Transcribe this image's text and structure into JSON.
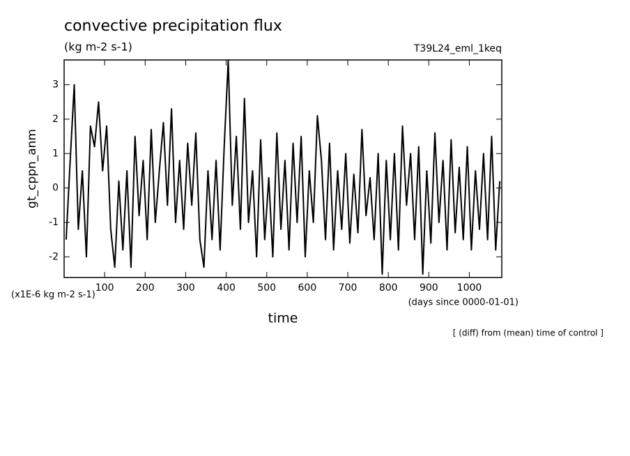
{
  "chart_data": {
    "type": "line",
    "title": "convective precipitation flux",
    "subtitle": "(kg m-2 s-1)",
    "run_name": "T39L24_eml_1keq",
    "y_label": "gt_cppn_anm",
    "y_unit_label": "(x1E-6 kg m-2 s-1)",
    "x_label": "time",
    "x_unit_label": "(days since 0000-01-01)",
    "annotation": "[ (diff) from (mean) time of control ]",
    "xlim": [
      0,
      1080
    ],
    "ylim": [
      -2.6,
      3.72
    ],
    "xticks": [
      100,
      200,
      300,
      400,
      500,
      600,
      700,
      800,
      900,
      1000
    ],
    "yticks": [
      -2,
      -1,
      0,
      1,
      2,
      3
    ],
    "series": [
      {
        "color": "#000000",
        "x": [
          5,
          15,
          25,
          35,
          45,
          55,
          65,
          75,
          85,
          95,
          105,
          115,
          125,
          135,
          145,
          155,
          165,
          175,
          185,
          195,
          205,
          215,
          225,
          235,
          245,
          255,
          265,
          275,
          285,
          295,
          305,
          315,
          325,
          335,
          345,
          355,
          365,
          375,
          385,
          395,
          405,
          415,
          425,
          435,
          445,
          455,
          465,
          475,
          485,
          495,
          505,
          515,
          525,
          535,
          545,
          555,
          565,
          575,
          585,
          595,
          605,
          615,
          625,
          635,
          645,
          655,
          665,
          675,
          685,
          695,
          705,
          715,
          725,
          735,
          745,
          755,
          765,
          775,
          785,
          795,
          805,
          815,
          825,
          835,
          845,
          855,
          865,
          875,
          885,
          895,
          905,
          915,
          925,
          935,
          945,
          955,
          965,
          975,
          985,
          995,
          1005,
          1015,
          1025,
          1035,
          1045,
          1055,
          1065,
          1075
        ],
        "values": [
          -1.5,
          0.8,
          3.0,
          -1.2,
          0.5,
          -2.0,
          1.8,
          1.2,
          2.5,
          0.5,
          1.8,
          -1.2,
          -2.3,
          0.2,
          -1.8,
          0.5,
          -2.3,
          1.5,
          -0.8,
          0.8,
          -1.5,
          1.7,
          -1.0,
          0.5,
          1.9,
          -0.5,
          2.3,
          -1.0,
          0.8,
          -1.2,
          1.3,
          -0.5,
          1.6,
          -1.5,
          -2.3,
          0.5,
          -1.5,
          0.8,
          -1.8,
          1.2,
          3.7,
          -0.5,
          1.5,
          -1.2,
          2.6,
          -1.0,
          0.5,
          -2.0,
          1.4,
          -1.5,
          0.3,
          -2.0,
          1.6,
          -1.2,
          0.8,
          -1.8,
          1.3,
          -1.0,
          1.5,
          -2.0,
          0.5,
          -1.0,
          2.1,
          0.8,
          -1.5,
          1.3,
          -1.8,
          0.5,
          -1.2,
          1.0,
          -1.6,
          0.4,
          -1.3,
          1.7,
          -0.8,
          0.3,
          -1.5,
          1.0,
          -2.5,
          0.8,
          -1.5,
          1.0,
          -1.8,
          1.8,
          -0.5,
          1.0,
          -1.5,
          1.2,
          -2.5,
          0.5,
          -1.6,
          1.6,
          -1.0,
          0.8,
          -1.8,
          1.4,
          -1.3,
          0.6,
          -1.5,
          1.2,
          -1.8,
          0.5,
          -1.2,
          1.0,
          -1.5,
          1.5,
          -1.8,
          0.2
        ]
      }
    ]
  }
}
